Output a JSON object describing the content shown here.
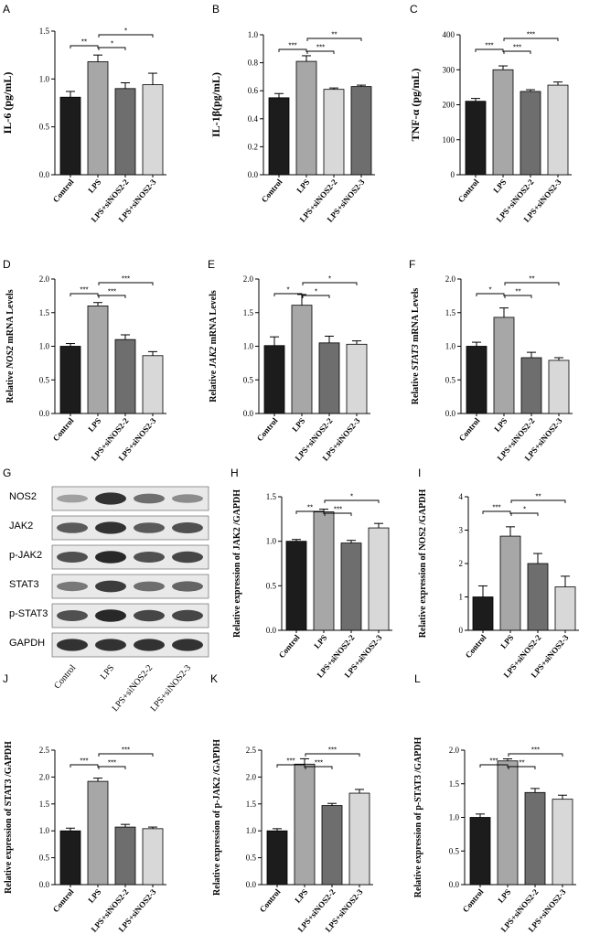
{
  "blot": {
    "letter": "G",
    "rows": [
      "NOS2",
      "JAK2",
      "p-JAK2",
      "STAT3",
      "p-STAT3",
      "GAPDH"
    ],
    "lanes": [
      "Control",
      "LPS",
      "LPS+siNOS2-2",
      "LPS+siNOS2-3"
    ],
    "intensity": [
      [
        0.35,
        0.9,
        0.6,
        0.45
      ],
      [
        0.7,
        0.9,
        0.7,
        0.75
      ],
      [
        0.75,
        0.95,
        0.75,
        0.8
      ],
      [
        0.55,
        0.85,
        0.6,
        0.65
      ],
      [
        0.75,
        0.95,
        0.8,
        0.8
      ],
      [
        0.9,
        0.9,
        0.9,
        0.9
      ]
    ]
  },
  "chart_data": [
    {
      "letter": "A",
      "type": "bar",
      "categories": [
        "Control",
        "LPS",
        "LPS+siNOS2-2",
        "LPS+siNOS2-3"
      ],
      "values": [
        0.81,
        1.18,
        0.9,
        0.94
      ],
      "errors": [
        0.06,
        0.07,
        0.06,
        0.12
      ],
      "ylabel": "IL-6 (pg/mL)",
      "ylabel_italic": "",
      "ylim": [
        0,
        1.5
      ],
      "yticks": [
        0.0,
        0.5,
        1.0,
        1.5
      ],
      "tick_labels": [
        "0.0",
        "0.5",
        "1.0",
        "1.5"
      ],
      "colors": [
        "#1c1c1c",
        "#a7a7a7",
        "#6e6e6e",
        "#d8d8d8"
      ],
      "sig": [
        {
          "from": 0,
          "to": 1,
          "label": "**"
        },
        {
          "from": 1,
          "to": 2,
          "label": "*"
        },
        {
          "from": 1,
          "to": 3,
          "label": "*"
        }
      ]
    },
    {
      "letter": "B",
      "type": "bar",
      "categories": [
        "Control",
        "LPS",
        "LPS+siNOS2-2",
        "LPS+siNOS2-3"
      ],
      "values": [
        0.55,
        0.81,
        0.61,
        0.63
      ],
      "errors": [
        0.03,
        0.04,
        0.01,
        0.01
      ],
      "ylabel": "IL-1β(pg/mL)",
      "ylabel_italic": "",
      "ylim": [
        0,
        1.0
      ],
      "yticks": [
        0.0,
        0.2,
        0.4,
        0.6,
        0.8,
        1.0
      ],
      "tick_labels": [
        "0.0",
        "0.2",
        "0.4",
        "0.6",
        "0.8",
        "1.0"
      ],
      "colors": [
        "#1c1c1c",
        "#a7a7a7",
        "#d8d8d8",
        "#6e6e6e"
      ],
      "sig": [
        {
          "from": 0,
          "to": 1,
          "label": "***"
        },
        {
          "from": 1,
          "to": 2,
          "label": "***"
        },
        {
          "from": 1,
          "to": 3,
          "label": "**"
        }
      ]
    },
    {
      "letter": "C",
      "type": "bar",
      "categories": [
        "Control",
        "LPS",
        "LPS+siNOS2-2",
        "LPS+siNOS2-3"
      ],
      "values": [
        210,
        300,
        238,
        256
      ],
      "errors": [
        8,
        11,
        5,
        9
      ],
      "ylabel": "TNF-α (pg/mL)",
      "ylabel_italic": "",
      "ylim": [
        0,
        400
      ],
      "yticks": [
        0,
        100,
        200,
        300,
        400
      ],
      "tick_labels": [
        "0",
        "100",
        "200",
        "300",
        "400"
      ],
      "colors": [
        "#1c1c1c",
        "#a7a7a7",
        "#6e6e6e",
        "#d8d8d8"
      ],
      "sig": [
        {
          "from": 0,
          "to": 1,
          "label": "***"
        },
        {
          "from": 1,
          "to": 2,
          "label": "***"
        },
        {
          "from": 1,
          "to": 3,
          "label": "***"
        }
      ]
    },
    {
      "letter": "D",
      "type": "bar",
      "categories": [
        "Control",
        "LPS",
        "LPS+siNOS2-2",
        "LPS+siNOS2-3"
      ],
      "values": [
        1.0,
        1.6,
        1.1,
        0.86
      ],
      "errors": [
        0.04,
        0.05,
        0.07,
        0.06
      ],
      "ylabel": "Relative NOS2 mRNA Levels",
      "ylabel_italic": "NOS2",
      "ylim": [
        0,
        2.0
      ],
      "yticks": [
        0.0,
        0.5,
        1.0,
        1.5,
        2.0
      ],
      "tick_labels": [
        "0.0",
        "0.5",
        "1.0",
        "1.5",
        "2.0"
      ],
      "colors": [
        "#1c1c1c",
        "#a7a7a7",
        "#6e6e6e",
        "#d8d8d8"
      ],
      "sig": [
        {
          "from": 0,
          "to": 1,
          "label": "***"
        },
        {
          "from": 1,
          "to": 2,
          "label": "***"
        },
        {
          "from": 1,
          "to": 3,
          "label": "***"
        }
      ]
    },
    {
      "letter": "E",
      "type": "bar",
      "categories": [
        "Control",
        "LPS",
        "LPS+siNOS2-2",
        "LPS+siNOS2-3"
      ],
      "values": [
        1.01,
        1.61,
        1.05,
        1.03
      ],
      "errors": [
        0.13,
        0.16,
        0.1,
        0.05
      ],
      "ylabel": "Relative JAK2 mRNA Levels",
      "ylabel_italic": "JAK2",
      "ylim": [
        0,
        2.0
      ],
      "yticks": [
        0.0,
        0.5,
        1.0,
        1.5,
        2.0
      ],
      "tick_labels": [
        "0.0",
        "0.5",
        "1.0",
        "1.5",
        "2.0"
      ],
      "colors": [
        "#1c1c1c",
        "#a7a7a7",
        "#6e6e6e",
        "#d8d8d8"
      ],
      "sig": [
        {
          "from": 0,
          "to": 1,
          "label": "*"
        },
        {
          "from": 1,
          "to": 2,
          "label": "*"
        },
        {
          "from": 1,
          "to": 3,
          "label": "*"
        }
      ]
    },
    {
      "letter": "F",
      "type": "bar",
      "categories": [
        "Control",
        "LPS",
        "LPS+siNOS2-2",
        "LPS+siNOS2-3"
      ],
      "values": [
        1.0,
        1.43,
        0.83,
        0.79
      ],
      "errors": [
        0.06,
        0.14,
        0.08,
        0.04
      ],
      "ylabel": "Relative STAT3 mRNA Levels",
      "ylabel_italic": "STAT3",
      "ylim": [
        0,
        2.0
      ],
      "yticks": [
        0.0,
        0.5,
        1.0,
        1.5,
        2.0
      ],
      "tick_labels": [
        "0.0",
        "0.5",
        "1.0",
        "1.5",
        "2.0"
      ],
      "colors": [
        "#1c1c1c",
        "#a7a7a7",
        "#6e6e6e",
        "#d8d8d8"
      ],
      "sig": [
        {
          "from": 0,
          "to": 1,
          "label": "*"
        },
        {
          "from": 1,
          "to": 2,
          "label": "**"
        },
        {
          "from": 1,
          "to": 3,
          "label": "**"
        }
      ]
    },
    {
      "letter": "H",
      "type": "bar",
      "categories": [
        "Control",
        "LPS",
        "LPS+siNOS2-2",
        "LPS+siNOS2-3"
      ],
      "values": [
        1.0,
        1.33,
        0.98,
        1.15
      ],
      "errors": [
        0.02,
        0.03,
        0.03,
        0.05
      ],
      "ylabel": "Relative expression of JAK2 /GAPDH",
      "ylabel_italic": "",
      "ylim": [
        0,
        1.5
      ],
      "yticks": [
        0.0,
        0.5,
        1.0,
        1.5
      ],
      "tick_labels": [
        "0.0",
        "0.5",
        "1.0",
        "1.5"
      ],
      "colors": [
        "#1c1c1c",
        "#a7a7a7",
        "#6e6e6e",
        "#d8d8d8"
      ],
      "sig": [
        {
          "from": 0,
          "to": 1,
          "label": "**"
        },
        {
          "from": 1,
          "to": 2,
          "label": "***"
        },
        {
          "from": 1,
          "to": 3,
          "label": "*"
        }
      ]
    },
    {
      "letter": "I",
      "type": "bar",
      "categories": [
        "Control",
        "LPS",
        "LPS+siNOS2-2",
        "LPS+siNOS2-3"
      ],
      "values": [
        1.0,
        2.82,
        2.0,
        1.3
      ],
      "errors": [
        0.33,
        0.28,
        0.3,
        0.32
      ],
      "ylabel": "Relative expression of NOS2 /GAPDH",
      "ylabel_italic": "",
      "ylim": [
        0,
        4
      ],
      "yticks": [
        0,
        1,
        2,
        3,
        4
      ],
      "tick_labels": [
        "0",
        "1",
        "2",
        "3",
        "4"
      ],
      "colors": [
        "#1c1c1c",
        "#a7a7a7",
        "#6e6e6e",
        "#d8d8d8"
      ],
      "sig": [
        {
          "from": 0,
          "to": 1,
          "label": "***"
        },
        {
          "from": 1,
          "to": 2,
          "label": "*"
        },
        {
          "from": 1,
          "to": 3,
          "label": "**"
        }
      ]
    },
    {
      "letter": "J",
      "type": "bar",
      "categories": [
        "Control",
        "LPS",
        "LPS+siNOS2-2",
        "LPS+siNOS2-3"
      ],
      "values": [
        1.0,
        1.92,
        1.07,
        1.04
      ],
      "errors": [
        0.05,
        0.06,
        0.05,
        0.03
      ],
      "ylabel": "Relative expression of STAT3 /GAPDH",
      "ylabel_italic": "",
      "ylim": [
        0,
        2.5
      ],
      "yticks": [
        0.0,
        0.5,
        1.0,
        1.5,
        2.0,
        2.5
      ],
      "tick_labels": [
        "0.0",
        "0.5",
        "1.0",
        "1.5",
        "2.0",
        "2.5"
      ],
      "colors": [
        "#1c1c1c",
        "#a7a7a7",
        "#6e6e6e",
        "#d8d8d8"
      ],
      "sig": [
        {
          "from": 0,
          "to": 1,
          "label": "***"
        },
        {
          "from": 1,
          "to": 2,
          "label": "***"
        },
        {
          "from": 1,
          "to": 3,
          "label": "***"
        }
      ]
    },
    {
      "letter": "K",
      "type": "bar",
      "categories": [
        "Control",
        "LPS",
        "LPS+siNOS2-2",
        "LPS+siNOS2-3"
      ],
      "values": [
        1.0,
        2.24,
        1.47,
        1.7
      ],
      "errors": [
        0.04,
        0.1,
        0.04,
        0.07
      ],
      "ylabel": "Relative expression of p-JAK2 /GAPDH",
      "ylabel_italic": "",
      "ylim": [
        0,
        2.5
      ],
      "yticks": [
        0.0,
        0.5,
        1.0,
        1.5,
        2.0,
        2.5
      ],
      "tick_labels": [
        "0.0",
        "0.5",
        "1.0",
        "1.5",
        "2.0",
        "2.5"
      ],
      "colors": [
        "#1c1c1c",
        "#a7a7a7",
        "#6e6e6e",
        "#d8d8d8"
      ],
      "sig": [
        {
          "from": 0,
          "to": 1,
          "label": "***"
        },
        {
          "from": 1,
          "to": 2,
          "label": "***"
        },
        {
          "from": 1,
          "to": 3,
          "label": "***"
        }
      ]
    },
    {
      "letter": "L",
      "type": "bar",
      "categories": [
        "Control",
        "LPS",
        "LPS+siNOS2-2",
        "LPS+siNOS2-3"
      ],
      "values": [
        1.0,
        1.84,
        1.37,
        1.27
      ],
      "errors": [
        0.05,
        0.03,
        0.06,
        0.06
      ],
      "ylabel": "Relative expression of p-STAT3 /GAPDH",
      "ylabel_italic": "",
      "ylim": [
        0,
        2.0
      ],
      "yticks": [
        0.0,
        0.5,
        1.0,
        1.5,
        2.0
      ],
      "tick_labels": [
        "0.0",
        "0.5",
        "1.0",
        "1.5",
        "2.0"
      ],
      "colors": [
        "#1c1c1c",
        "#a7a7a7",
        "#6e6e6e",
        "#d8d8d8"
      ],
      "sig": [
        {
          "from": 0,
          "to": 1,
          "label": "***"
        },
        {
          "from": 1,
          "to": 2,
          "label": "**"
        },
        {
          "from": 1,
          "to": 3,
          "label": "***"
        }
      ]
    }
  ]
}
